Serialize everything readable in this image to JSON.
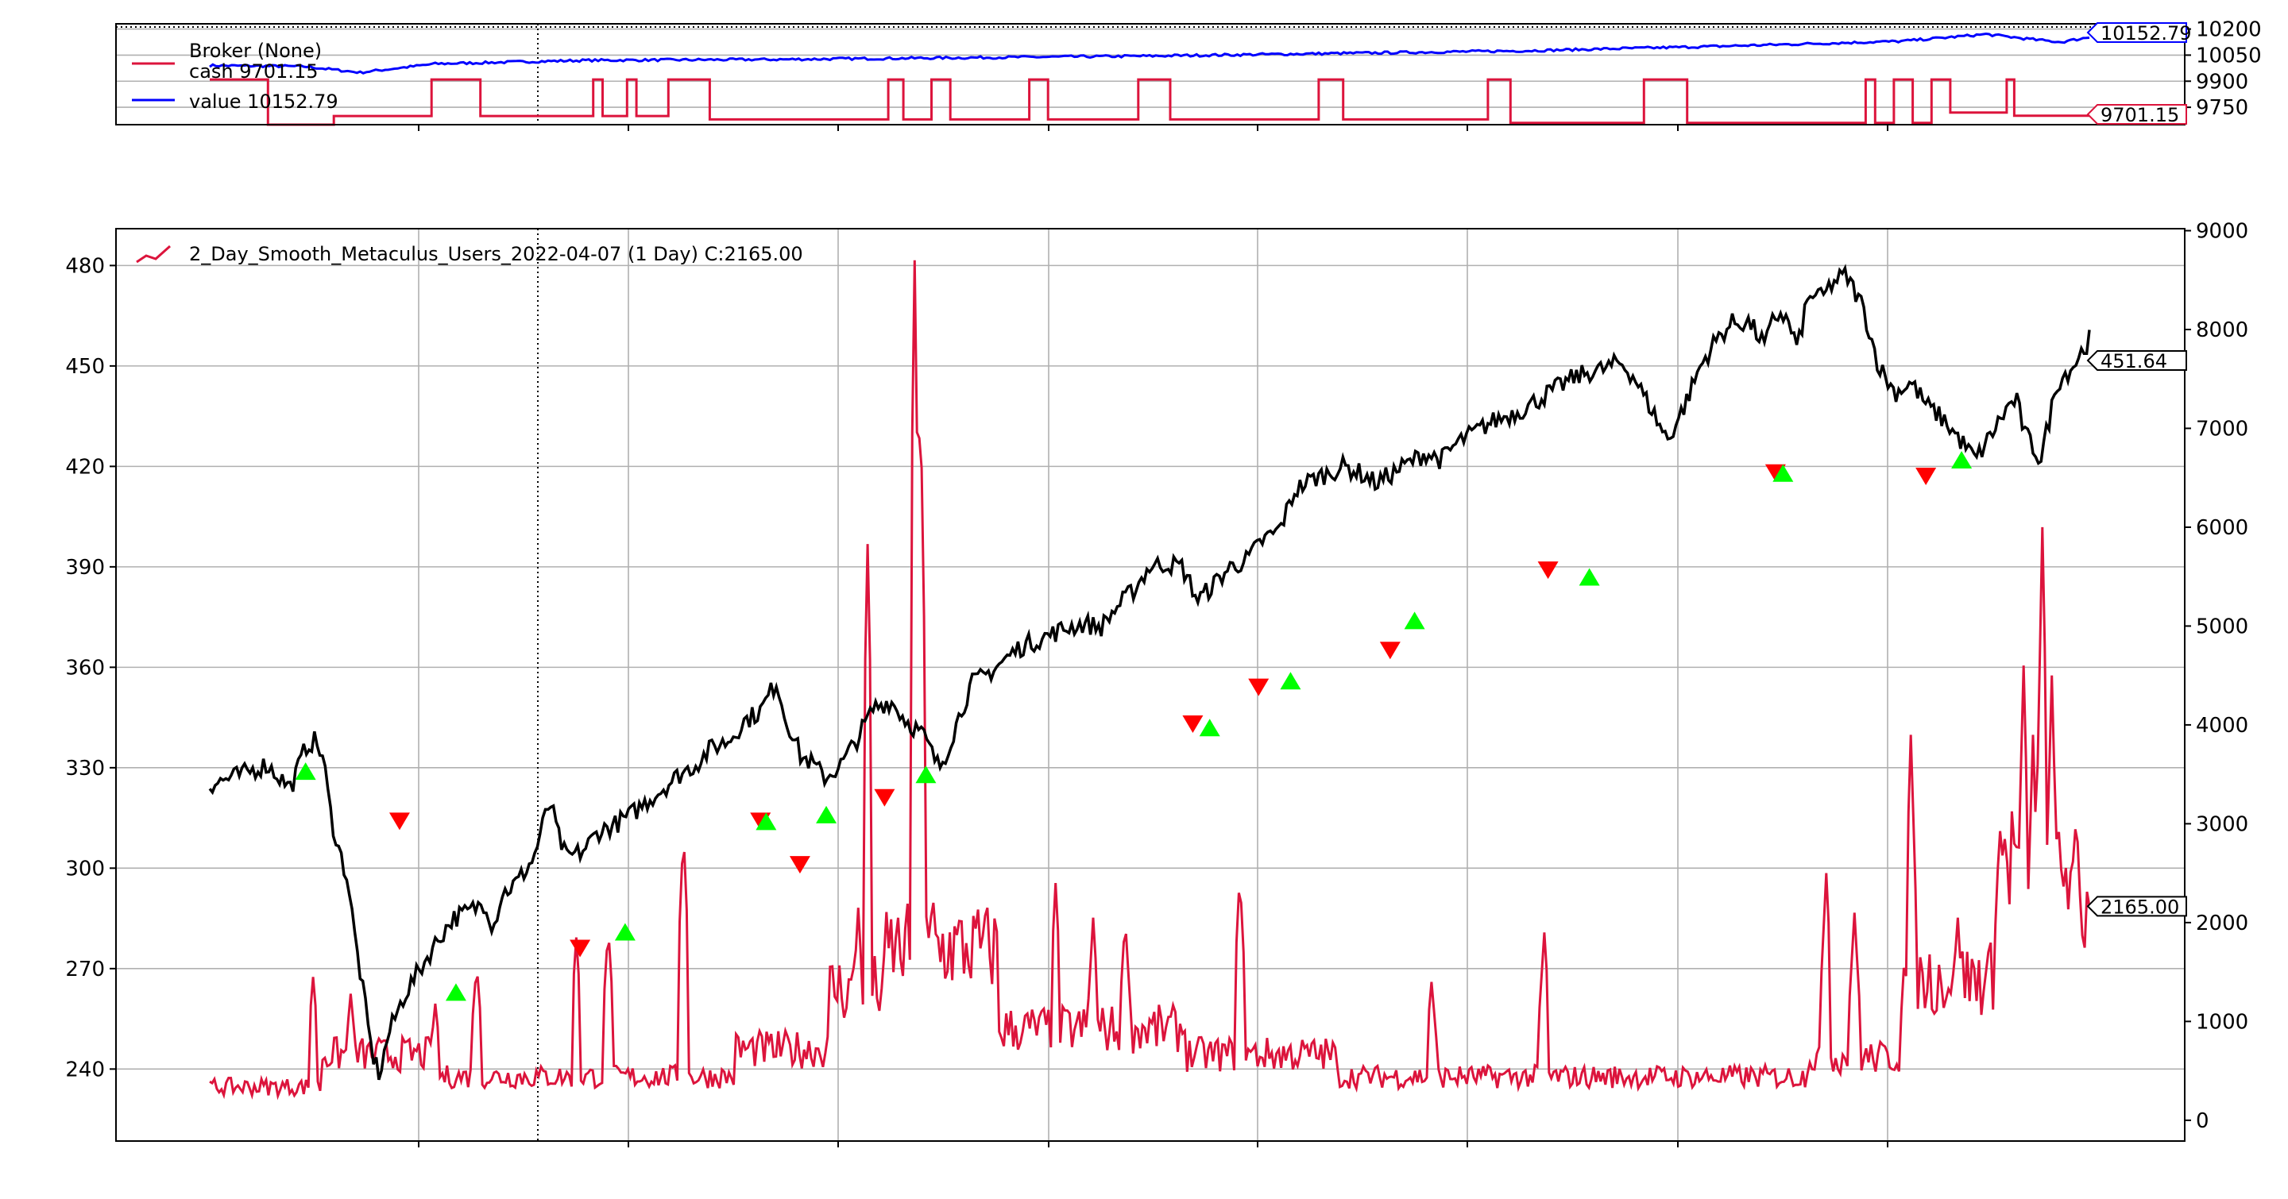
{
  "chart_data": [
    {
      "type": "line",
      "panel": "broker",
      "legend": {
        "title": "Broker (None)",
        "placement": "top-left",
        "entries": [
          {
            "key": "cash",
            "label": "cash 9701.15"
          },
          {
            "key": "value",
            "label": "value 10152.79"
          }
        ]
      },
      "right_axis": {
        "range": [
          9650,
          10230
        ],
        "ticks": [
          9750,
          9900,
          10050,
          10200
        ],
        "tick_labels": [
          "9750",
          "9900",
          "10050",
          "10200"
        ]
      },
      "grid": true,
      "reference_line": 10200,
      "series": [
        {
          "name": "cash",
          "color": "#dc143c",
          "last_label": "9701.15",
          "segments": [
            [
              0.0,
              0.031,
              9910
            ],
            [
              0.031,
              0.066,
              9650
            ],
            [
              0.066,
              0.118,
              9700
            ],
            [
              0.118,
              0.144,
              9910
            ],
            [
              0.144,
              0.204,
              9700
            ],
            [
              0.204,
              0.209,
              9910
            ],
            [
              0.209,
              0.222,
              9700
            ],
            [
              0.222,
              0.227,
              9910
            ],
            [
              0.227,
              0.244,
              9700
            ],
            [
              0.244,
              0.266,
              9910
            ],
            [
              0.266,
              0.361,
              9680
            ],
            [
              0.361,
              0.369,
              9910
            ],
            [
              0.369,
              0.384,
              9680
            ],
            [
              0.384,
              0.394,
              9910
            ],
            [
              0.394,
              0.436,
              9680
            ],
            [
              0.436,
              0.446,
              9910
            ],
            [
              0.446,
              0.494,
              9680
            ],
            [
              0.494,
              0.511,
              9910
            ],
            [
              0.511,
              0.59,
              9680
            ],
            [
              0.59,
              0.603,
              9910
            ],
            [
              0.603,
              0.68,
              9680
            ],
            [
              0.68,
              0.692,
              9910
            ],
            [
              0.692,
              0.763,
              9660
            ],
            [
              0.763,
              0.786,
              9910
            ],
            [
              0.786,
              0.881,
              9660
            ],
            [
              0.881,
              0.886,
              9910
            ],
            [
              0.886,
              0.896,
              9660
            ],
            [
              0.896,
              0.906,
              9910
            ],
            [
              0.906,
              0.916,
              9660
            ],
            [
              0.916,
              0.926,
              9910
            ],
            [
              0.926,
              0.956,
              9720
            ],
            [
              0.956,
              0.96,
              9910
            ],
            [
              0.96,
              1.0,
              9701.15
            ]
          ]
        },
        {
          "name": "value",
          "color": "#0000ff",
          "last_label": "10152.79",
          "anchors": [
            [
              0,
              9990
            ],
            [
              0.05,
              9985
            ],
            [
              0.08,
              9950
            ],
            [
              0.12,
              10000
            ],
            [
              0.2,
              10020
            ],
            [
              0.3,
              10025
            ],
            [
              0.4,
              10035
            ],
            [
              0.5,
              10045
            ],
            [
              0.6,
              10060
            ],
            [
              0.7,
              10075
            ],
            [
              0.8,
              10100
            ],
            [
              0.9,
              10130
            ],
            [
              0.945,
              10170
            ],
            [
              0.97,
              10140
            ],
            [
              0.985,
              10125
            ],
            [
              1,
              10152.79
            ]
          ]
        }
      ]
    },
    {
      "type": "line",
      "panel": "price",
      "legend": {
        "placement": "top-left",
        "entries": [
          {
            "key": "volume",
            "label": "2_Day_Smooth_Metaculus_Users_2022-04-07 (1 Day) C:2165.00"
          }
        ]
      },
      "left_axis": {
        "range": [
          218.5,
          491
        ],
        "ticks": [
          240,
          270,
          300,
          330,
          360,
          390,
          420,
          450,
          480
        ],
        "tick_labels": [
          "240",
          "270",
          "300",
          "330",
          "360",
          "390",
          "420",
          "450",
          "480"
        ]
      },
      "right_axis": {
        "range": [
          -210,
          9020
        ],
        "ticks": [
          0,
          1000,
          2000,
          3000,
          4000,
          5000,
          6000,
          7000,
          8000,
          9000
        ],
        "tick_labels": [
          "0",
          "1000",
          "2000",
          "3000",
          "4000",
          "5000",
          "6000",
          "7000",
          "8000",
          "9000"
        ]
      },
      "grid": true,
      "series": [
        {
          "name": "close",
          "color": "#000000",
          "axis": "left",
          "last_label": "451.64",
          "anchors": [
            [
              0,
              325
            ],
            [
              0.02,
              328
            ],
            [
              0.035,
              331
            ],
            [
              0.05,
              324
            ],
            [
              0.06,
              337
            ],
            [
              0.065,
              338
            ],
            [
              0.07,
              333
            ],
            [
              0.075,
              315
            ],
            [
              0.08,
              305
            ],
            [
              0.085,
              297
            ],
            [
              0.09,
              278
            ],
            [
              0.095,
              262
            ],
            [
              0.1,
              245
            ],
            [
              0.105,
              238
            ],
            [
              0.11,
              250
            ],
            [
              0.12,
              262
            ],
            [
              0.13,
              270
            ],
            [
              0.14,
              278
            ],
            [
              0.15,
              285
            ],
            [
              0.16,
              287
            ],
            [
              0.17,
              290
            ],
            [
              0.175,
              282
            ],
            [
              0.18,
              292
            ],
            [
              0.19,
              296
            ],
            [
              0.2,
              303
            ],
            [
              0.205,
              312
            ],
            [
              0.21,
              320
            ],
            [
              0.215,
              310
            ],
            [
              0.22,
              303
            ],
            [
              0.23,
              305
            ],
            [
              0.24,
              311
            ],
            [
              0.25,
              313
            ],
            [
              0.26,
              316
            ],
            [
              0.27,
              320
            ],
            [
              0.28,
              324
            ],
            [
              0.29,
              328
            ],
            [
              0.3,
              331
            ],
            [
              0.31,
              336
            ],
            [
              0.32,
              338
            ],
            [
              0.33,
              344
            ],
            [
              0.34,
              347
            ],
            [
              0.35,
              356
            ],
            [
              0.355,
              345
            ],
            [
              0.36,
              340
            ],
            [
              0.365,
              333
            ],
            [
              0.37,
              332
            ],
            [
              0.38,
              327
            ],
            [
              0.39,
              331
            ],
            [
              0.4,
              339
            ],
            [
              0.41,
              348
            ],
            [
              0.42,
              350
            ],
            [
              0.43,
              344
            ],
            [
              0.44,
              340
            ],
            [
              0.45,
              330
            ],
            [
              0.455,
              335
            ],
            [
              0.46,
              342
            ],
            [
              0.47,
              355
            ],
            [
              0.48,
              358
            ],
            [
              0.49,
              362
            ],
            [
              0.5,
              366
            ],
            [
              0.51,
              368
            ],
            [
              0.52,
              370
            ],
            [
              0.53,
              372
            ],
            [
              0.54,
              373
            ],
            [
              0.55,
              372
            ],
            [
              0.56,
              378
            ],
            [
              0.57,
              383
            ],
            [
              0.58,
              390
            ],
            [
              0.59,
              391
            ],
            [
              0.6,
              390
            ],
            [
              0.61,
              380
            ],
            [
              0.62,
              385
            ],
            [
              0.63,
              390
            ],
            [
              0.64,
              392
            ],
            [
              0.65,
              398
            ],
            [
              0.66,
              401
            ],
            [
              0.67,
              413
            ],
            [
              0.68,
              416
            ],
            [
              0.69,
              418
            ],
            [
              0.7,
              420
            ],
            [
              0.71,
              418
            ],
            [
              0.72,
              415
            ],
            [
              0.73,
              418
            ],
            [
              0.74,
              421
            ],
            [
              0.75,
              424
            ],
            [
              0.76,
              422
            ],
            [
              0.77,
              427
            ],
            [
              0.78,
              430
            ],
            [
              0.79,
              433
            ],
            [
              0.8,
              435
            ],
            [
              0.81,
              437
            ],
            [
              0.82,
              440
            ],
            [
              0.83,
              443
            ],
            [
              0.84,
              446
            ],
            [
              0.85,
              448
            ],
            [
              0.86,
              449
            ],
            [
              0.87,
              451
            ],
            [
              0.875,
              449
            ],
            [
              0.88,
              446
            ],
            [
              0.885,
              441
            ],
            [
              0.89,
              437
            ],
            [
              0.895,
              432
            ],
            [
              0.9,
              428
            ],
            [
              0.91,
              438
            ],
            [
              0.92,
              450
            ],
            [
              0.93,
              458
            ],
            [
              0.94,
              463
            ],
            [
              0.95,
              463
            ],
            [
              0.96,
              456
            ],
            [
              0.965,
              464
            ],
            [
              0.97,
              466
            ],
            [
              0.975,
              462
            ],
            [
              0.98,
              455
            ],
            [
              0.985,
              468
            ],
            [
              0.99,
              472
            ],
            [
              0.995,
              470
            ],
            [
              1.0,
              474
            ],
            [
              1.005,
              476
            ],
            [
              1.01,
              477
            ],
            [
              1.02,
              468
            ],
            [
              1.03,
              450
            ],
            [
              1.04,
              442
            ],
            [
              1.05,
              445
            ],
            [
              1.06,
              438
            ],
            [
              1.07,
              434
            ],
            [
              1.08,
              428
            ],
            [
              1.09,
              422
            ],
            [
              1.1,
              430
            ],
            [
              1.11,
              438
            ],
            [
              1.115,
              440
            ],
            [
              1.12,
              430
            ],
            [
              1.13,
              422
            ],
            [
              1.14,
              445
            ],
            [
              1.15,
              450
            ],
            [
              1.16,
              458
            ]
          ]
        },
        {
          "name": "volume",
          "color": "#dc143c",
          "axis": "right",
          "last_label": "2165.00"
        }
      ],
      "signals": [
        {
          "type": "buy",
          "x": 0.051,
          "value": 329
        },
        {
          "type": "sell",
          "x": 0.101,
          "value": 314
        },
        {
          "type": "buy",
          "x": 0.131,
          "value": 263
        },
        {
          "type": "sell",
          "x": 0.197,
          "value": 276
        },
        {
          "type": "buy",
          "x": 0.221,
          "value": 281
        },
        {
          "type": "sell",
          "x": 0.293,
          "value": 314
        },
        {
          "type": "buy",
          "x": 0.296,
          "value": 314
        },
        {
          "type": "sell",
          "x": 0.314,
          "value": 301
        },
        {
          "type": "buy",
          "x": 0.328,
          "value": 316
        },
        {
          "type": "sell",
          "x": 0.359,
          "value": 321
        },
        {
          "type": "buy",
          "x": 0.381,
          "value": 328
        },
        {
          "type": "sell",
          "x": 0.523,
          "value": 343
        },
        {
          "type": "buy",
          "x": 0.532,
          "value": 342
        },
        {
          "type": "sell",
          "x": 0.558,
          "value": 354
        },
        {
          "type": "buy",
          "x": 0.575,
          "value": 356
        },
        {
          "type": "sell",
          "x": 0.628,
          "value": 365
        },
        {
          "type": "buy",
          "x": 0.641,
          "value": 374
        },
        {
          "type": "sell",
          "x": 0.712,
          "value": 389
        },
        {
          "type": "buy",
          "x": 0.734,
          "value": 387
        },
        {
          "type": "sell",
          "x": 0.833,
          "value": 418
        },
        {
          "type": "buy",
          "x": 0.837,
          "value": 418
        },
        {
          "type": "sell",
          "x": 0.913,
          "value": 417
        },
        {
          "type": "buy",
          "x": 0.932,
          "value": 422
        }
      ],
      "buy_color": "#00ff00",
      "sell_color": "#ff0000"
    }
  ]
}
